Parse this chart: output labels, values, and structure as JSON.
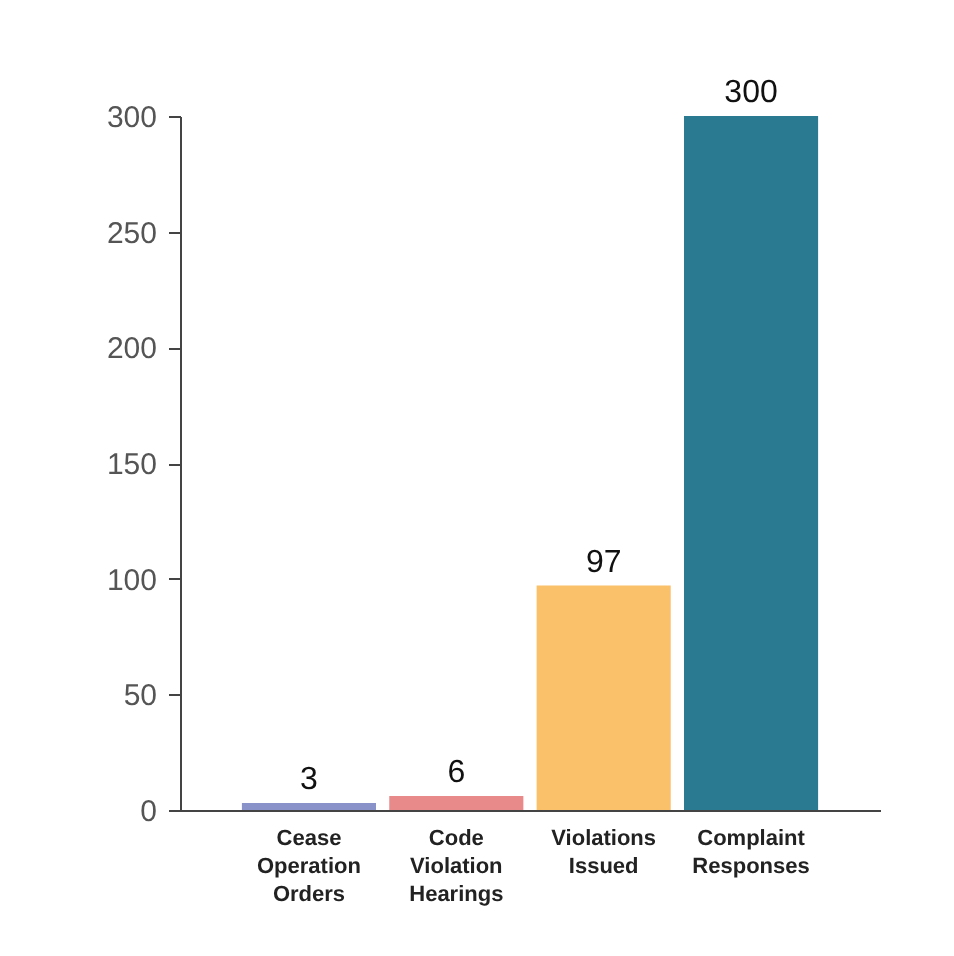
{
  "chart_data": {
    "type": "bar",
    "categories": [
      "Cease Operation Orders",
      "Code Violation Hearings",
      "Violations Issued",
      "Complaint Responses"
    ],
    "values": [
      3,
      6,
      97,
      300
    ],
    "colors": [
      "#8a93c9",
      "#e8898a",
      "#fbc06a",
      "#2a7a91"
    ],
    "ylim": [
      0,
      300
    ],
    "yticks": [
      0,
      50,
      100,
      150,
      200,
      250,
      300
    ],
    "data_labels": true,
    "grid": false
  }
}
